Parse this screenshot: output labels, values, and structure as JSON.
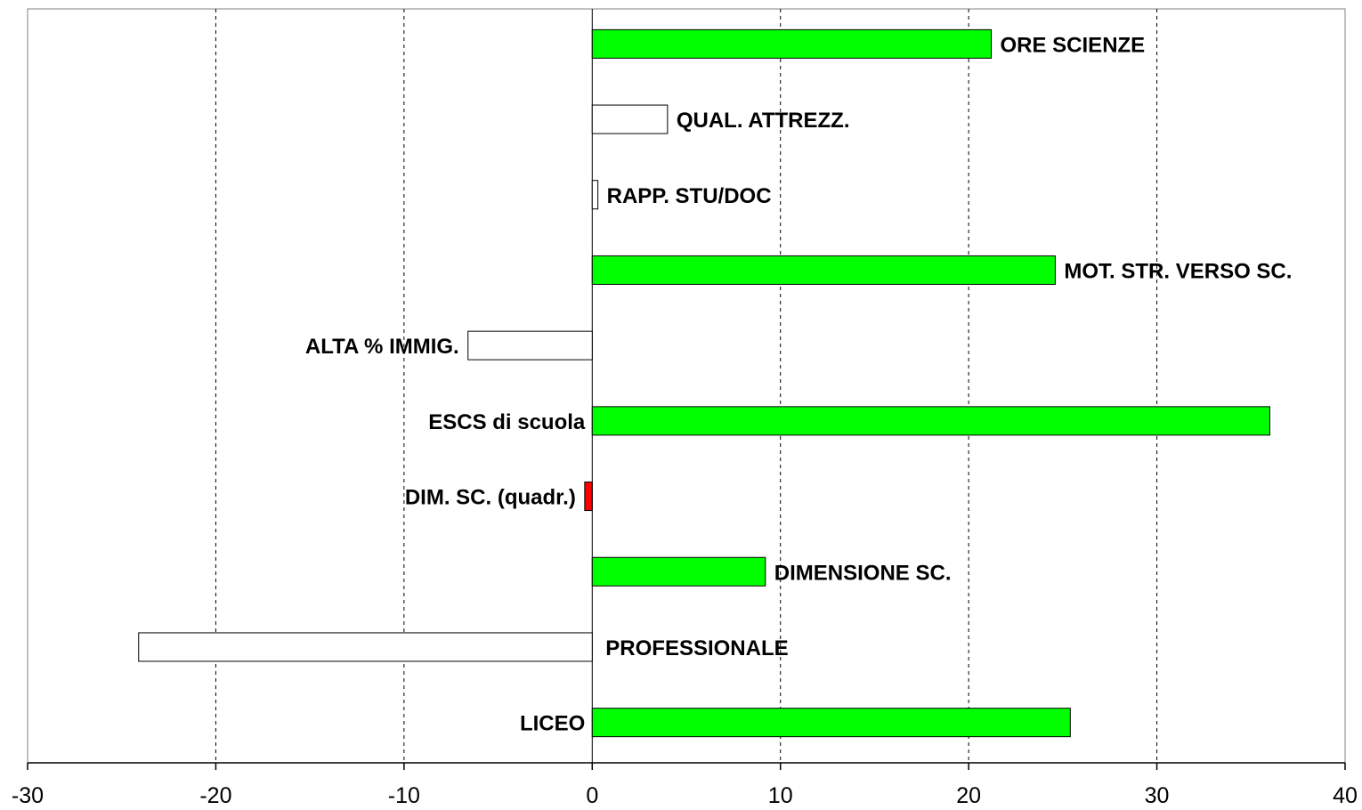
{
  "chart_data": {
    "type": "bar",
    "orientation": "horizontal",
    "title": "",
    "xlabel": "",
    "ylabel": "",
    "xlim": [
      -30,
      40
    ],
    "xticks": [
      -30,
      -20,
      -10,
      0,
      10,
      20,
      30,
      40
    ],
    "grid": "vertical dashed",
    "legend": "none",
    "colors": {
      "significant_positive": "#00ff00",
      "significant_negative": "#ff0000",
      "not_significant": "#ffffff",
      "outline": "#000000"
    },
    "bars": [
      {
        "label": "ORE SCIENZE",
        "value": 21.2,
        "status": "significant_positive"
      },
      {
        "label": "QUAL. ATTREZZ.",
        "value": 4.0,
        "status": "not_significant"
      },
      {
        "label": "RAPP. STU/DOC",
        "value": 0.3,
        "status": "not_significant"
      },
      {
        "label": "MOT. STR. VERSO SC.",
        "value": 24.6,
        "status": "significant_positive"
      },
      {
        "label": "ALTA % IMMIG.",
        "value": -6.6,
        "status": "not_significant"
      },
      {
        "label": "ESCS di scuola",
        "value": 36.0,
        "status": "significant_positive"
      },
      {
        "label": "DIM. SC. (quadr.)",
        "value": -0.4,
        "status": "significant_negative"
      },
      {
        "label": "DIMENSIONE SC.",
        "value": 9.2,
        "status": "significant_positive"
      },
      {
        "label": "PROFESSIONALE",
        "value": -24.1,
        "status": "not_significant"
      },
      {
        "label": "LICEO",
        "value": 25.4,
        "status": "significant_positive"
      }
    ]
  }
}
